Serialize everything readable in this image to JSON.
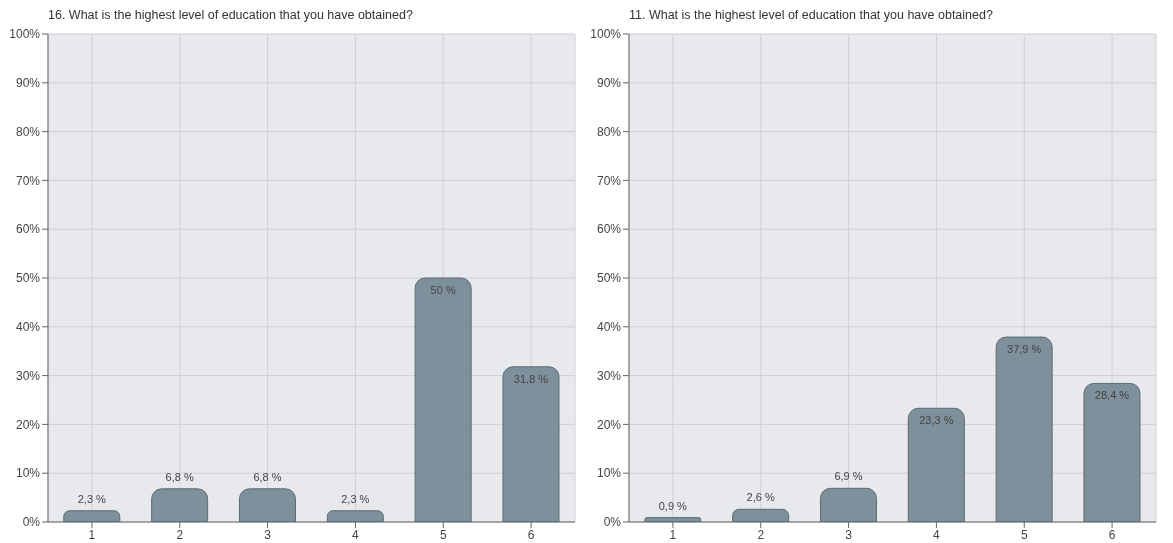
{
  "chart_data": [
    {
      "type": "bar",
      "title": "16. What is the highest level of education that you have obtained?",
      "categories": [
        "1",
        "2",
        "3",
        "4",
        "5",
        "6"
      ],
      "values": [
        2.3,
        6.8,
        6.8,
        2.3,
        50,
        31.8
      ],
      "value_labels": [
        "2,3 %",
        "6,8 %",
        "6,8 %",
        "2,3 %",
        "50 %",
        "31,8 %"
      ],
      "color": "#7d909b",
      "ylim": [
        0,
        100
      ],
      "yticks": [
        {
          "value": 0,
          "label": "0%"
        },
        {
          "value": 10,
          "label": "10%"
        },
        {
          "value": 20,
          "label": "20%"
        },
        {
          "value": 30,
          "label": "30%"
        },
        {
          "value": 40,
          "label": "40%"
        },
        {
          "value": 50,
          "label": "50%"
        },
        {
          "value": 60,
          "label": "60%"
        },
        {
          "value": 70,
          "label": "70%"
        },
        {
          "value": 80,
          "label": "80%"
        },
        {
          "value": 90,
          "label": "90%"
        },
        {
          "value": 100,
          "label": "100%"
        }
      ],
      "grid": true
    },
    {
      "type": "bar",
      "title": "11. What is the highest level of education that you have obtained?",
      "categories": [
        "1",
        "2",
        "3",
        "4",
        "5",
        "6"
      ],
      "values": [
        0.9,
        2.6,
        6.9,
        23.3,
        37.9,
        28.4
      ],
      "value_labels": [
        "0,9 %",
        "2,6 %",
        "6,9 %",
        "23,3 %",
        "37,9 %",
        "28,4 %"
      ],
      "color": "#7d909b",
      "ylim": [
        0,
        100
      ],
      "yticks": [
        {
          "value": 0,
          "label": "0%"
        },
        {
          "value": 10,
          "label": "10%"
        },
        {
          "value": 20,
          "label": "20%"
        },
        {
          "value": 30,
          "label": "30%"
        },
        {
          "value": 40,
          "label": "40%"
        },
        {
          "value": 50,
          "label": "50%"
        },
        {
          "value": 60,
          "label": "60%"
        },
        {
          "value": 70,
          "label": "70%"
        },
        {
          "value": 80,
          "label": "80%"
        },
        {
          "value": 90,
          "label": "90%"
        },
        {
          "value": 100,
          "label": "100%"
        }
      ],
      "grid": true
    }
  ]
}
